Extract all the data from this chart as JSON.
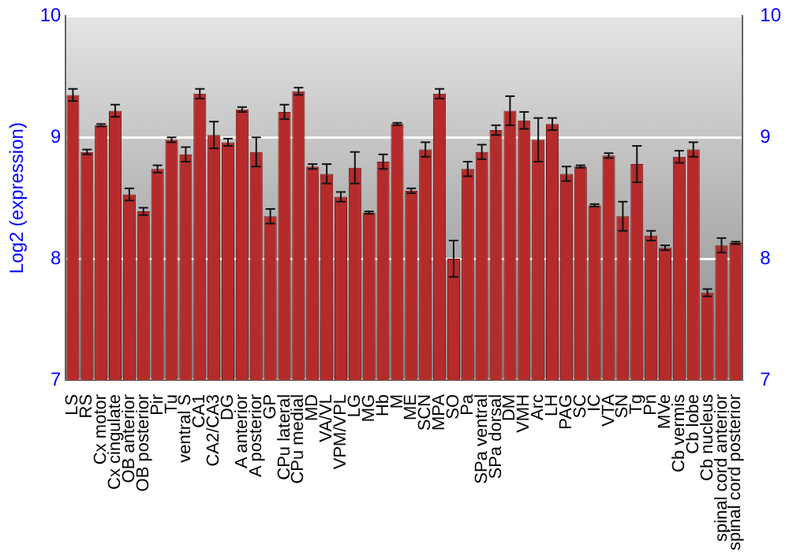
{
  "chart_data": {
    "type": "bar",
    "ylabel": "Log2 (expression)",
    "categories": [
      "LS",
      "RS",
      "Cx motor",
      "Cx cingulate",
      "OB anterior",
      "OB posterior",
      "Pir",
      "Tu",
      "ventral S",
      "CA1",
      "CA2/CA3",
      "DG",
      "A anterior",
      "A posterior",
      "GP",
      "CPu lateral",
      "CPu medial",
      "MD",
      "VA/VL",
      "VPM/VPL",
      "LG",
      "MG",
      "Hb",
      "M",
      "ME",
      "SCN",
      "MPA",
      "SO",
      "Pa",
      "SPa ventral",
      "SPa dorsal",
      "DM",
      "VMH",
      "Arc",
      "LH",
      "PAG",
      "SC",
      "IC",
      "VTA",
      "SN",
      "Tg",
      "Pn",
      "MVe",
      "Cb vermis",
      "Cb lobe",
      "Cb nucleus",
      "spinal cord anterior",
      "spinal cord posterior"
    ],
    "values": [
      9.35,
      8.88,
      9.1,
      9.22,
      8.53,
      8.39,
      8.74,
      8.98,
      8.86,
      9.36,
      9.02,
      8.96,
      9.23,
      8.88,
      8.35,
      9.21,
      9.38,
      8.76,
      8.7,
      8.51,
      8.75,
      8.38,
      8.8,
      9.11,
      8.56,
      8.9,
      9.36,
      8.0,
      8.74,
      8.88,
      9.06,
      9.22,
      9.14,
      8.98,
      9.11,
      8.7,
      8.76,
      8.44,
      8.85,
      8.35,
      8.78,
      8.19,
      8.09,
      8.84,
      8.9,
      7.72,
      8.11,
      8.13
    ],
    "errors": [
      0.05,
      0.02,
      0.01,
      0.05,
      0.05,
      0.03,
      0.03,
      0.02,
      0.06,
      0.04,
      0.11,
      0.03,
      0.02,
      0.12,
      0.06,
      0.06,
      0.03,
      0.02,
      0.08,
      0.04,
      0.13,
      0.01,
      0.06,
      0.01,
      0.02,
      0.06,
      0.04,
      0.15,
      0.06,
      0.06,
      0.04,
      0.12,
      0.07,
      0.18,
      0.05,
      0.06,
      0.01,
      0.01,
      0.02,
      0.12,
      0.15,
      0.04,
      0.02,
      0.05,
      0.06,
      0.03,
      0.06,
      0.01
    ],
    "color": "#b52b2b",
    "ylim": [
      7,
      10
    ],
    "yticks": [
      7,
      8,
      9,
      10
    ],
    "y2lim": [
      7,
      10
    ],
    "y2ticks": [
      7,
      8,
      9,
      10
    ],
    "grid": "y",
    "legend": false
  }
}
